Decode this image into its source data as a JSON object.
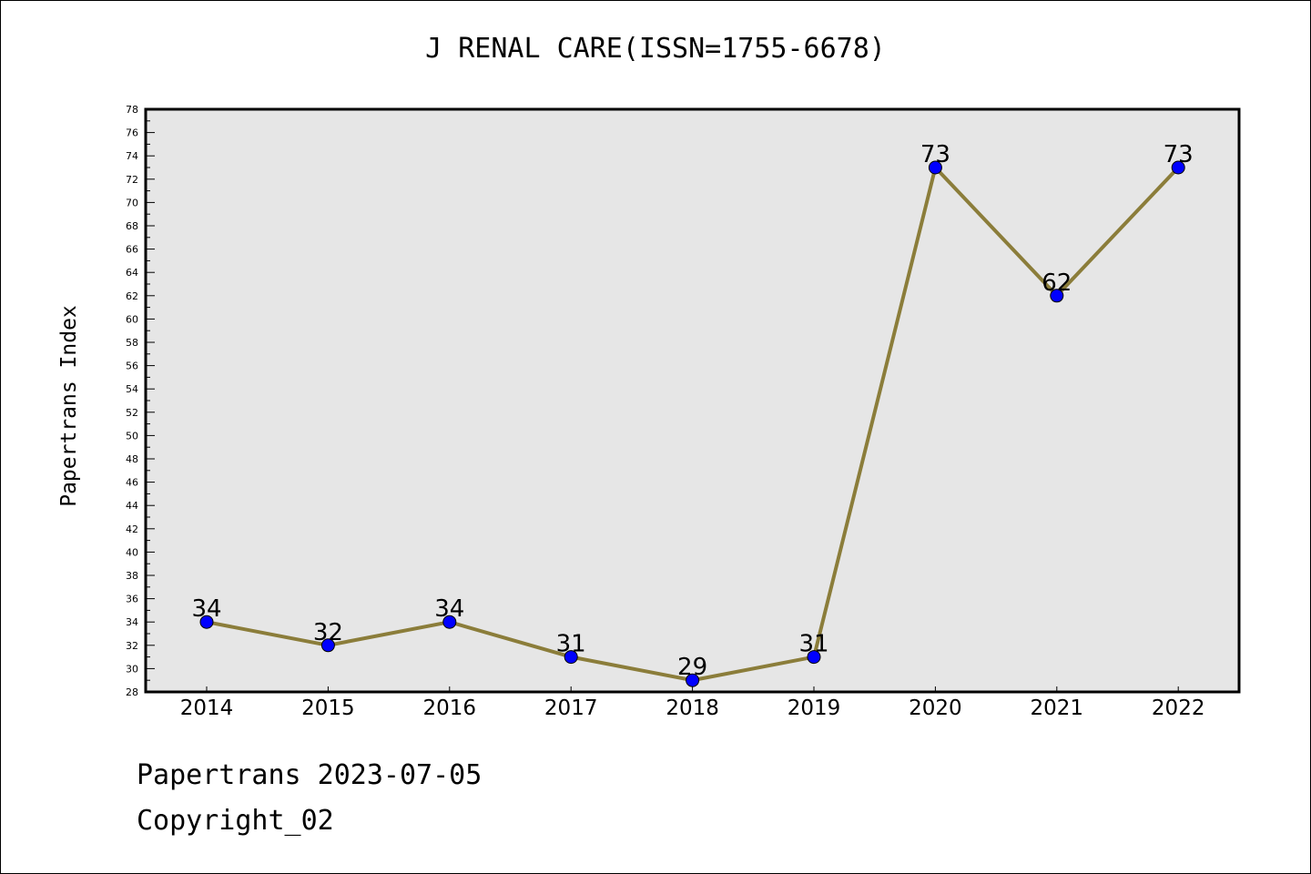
{
  "chart_data": {
    "type": "line",
    "title": "J RENAL CARE(ISSN=1755-6678)",
    "xlabel": "",
    "ylabel": "Papertrans Index",
    "categories": [
      "2014",
      "2015",
      "2016",
      "2017",
      "2018",
      "2019",
      "2020",
      "2021",
      "2022"
    ],
    "series": [
      {
        "values": [
          34,
          32,
          34,
          31,
          29,
          31,
          73,
          62,
          73
        ]
      }
    ],
    "ylim": [
      28,
      78
    ],
    "ytick_step": 2,
    "grid": false,
    "data_labels": true,
    "line_color": "#8b7d3a",
    "marker_color": "#0000ff",
    "plot_background": "#e6e6e6"
  },
  "footer": {
    "line1": "Papertrans 2023-07-05",
    "line2": "Copyright_02"
  }
}
